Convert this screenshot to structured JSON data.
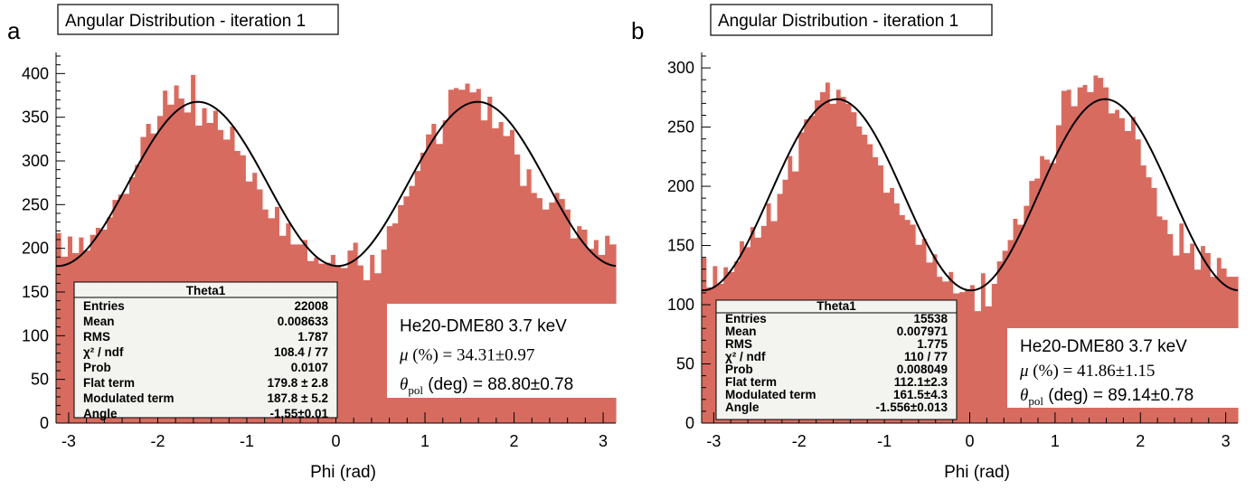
{
  "colors": {
    "histogram_fill": "#d86b5f",
    "histogram_line": "#ffffff",
    "fit_line": "#000000",
    "stats_bg": "#f3f3f0"
  },
  "chart_data": [
    {
      "type": "bar",
      "panel_label": "a",
      "title": "Angular Distribution - iteration 1",
      "xlabel": "Phi (rad)",
      "ylabel": "",
      "xlim": [
        -3.1416,
        3.1416
      ],
      "ylim": [
        0,
        420
      ],
      "x_ticks": [
        "-3",
        "-2",
        "-1",
        "0",
        "1",
        "2",
        "3"
      ],
      "y_ticks": [
        "0",
        "50",
        "100",
        "150",
        "200",
        "250",
        "300",
        "350",
        "400"
      ],
      "bin_count": 100,
      "values": [
        218,
        191,
        214,
        195,
        213,
        198,
        216,
        224,
        222,
        236,
        256,
        262,
        263,
        282,
        296,
        328,
        343,
        332,
        352,
        381,
        365,
        387,
        372,
        356,
        399,
        341,
        361,
        344,
        358,
        336,
        325,
        340,
        312,
        307,
        277,
        287,
        268,
        245,
        235,
        248,
        215,
        229,
        205,
        205,
        210,
        186,
        190,
        183,
        184,
        193,
        180,
        178,
        198,
        207,
        181,
        164,
        193,
        172,
        199,
        226,
        229,
        250,
        260,
        272,
        289,
        310,
        331,
        343,
        320,
        347,
        382,
        384,
        382,
        389,
        379,
        383,
        347,
        374,
        338,
        345,
        329,
        336,
        308,
        272,
        291,
        264,
        258,
        245,
        253,
        264,
        257,
        245,
        212,
        226,
        222,
        200,
        210,
        193,
        215,
        205
      ],
      "fit": {
        "flat_term": 179.8,
        "modulated_term": 187.8,
        "angle": -1.55
      },
      "stats": {
        "title": "Theta1",
        "rows": [
          {
            "label": "Entries",
            "value": "22008"
          },
          {
            "label": "Mean",
            "value": "0.008633"
          },
          {
            "label": "RMS",
            "value": "1.787"
          },
          {
            "label": "χ² / ndf",
            "value": "108.4 / 77"
          },
          {
            "label": "Prob",
            "value": "0.0107"
          },
          {
            "label": "Flat term",
            "value": "179.8 ± 2.8"
          },
          {
            "label": "Modulated term",
            "value": "187.8 ± 5.2"
          },
          {
            "label": "Angle",
            "value": "-1.55±0.01"
          }
        ]
      },
      "annotation": {
        "line1": "He20-DME80 3.7 keV",
        "mu_label": "μ (%) = ",
        "mu_value": "34.31±0.97",
        "theta_symbol": "θ",
        "theta_sub": "pol",
        "theta_label": " (deg) = ",
        "theta_value": "88.80±0.78"
      }
    },
    {
      "type": "bar",
      "panel_label": "b",
      "title": "Angular Distribution - iteration 1",
      "xlabel": "Phi (rad)",
      "ylabel": "",
      "xlim": [
        -3.1416,
        3.1416
      ],
      "ylim": [
        0,
        310
      ],
      "x_ticks": [
        "-3",
        "-2",
        "-1",
        "0",
        "1",
        "2",
        "3"
      ],
      "y_ticks": [
        "0",
        "50",
        "100",
        "150",
        "200",
        "250",
        "300"
      ],
      "bin_count": 100,
      "values": [
        140,
        115,
        133,
        118,
        132,
        128,
        137,
        154,
        149,
        166,
        157,
        167,
        186,
        171,
        194,
        206,
        226,
        213,
        246,
        257,
        260,
        273,
        280,
        288,
        270,
        282,
        276,
        270,
        263,
        251,
        244,
        236,
        225,
        218,
        195,
        199,
        186,
        176,
        172,
        168,
        151,
        156,
        136,
        143,
        124,
        120,
        128,
        110,
        111,
        113,
        117,
        95,
        127,
        99,
        118,
        137,
        146,
        155,
        173,
        168,
        184,
        205,
        207,
        226,
        223,
        220,
        252,
        281,
        282,
        268,
        284,
        286,
        280,
        294,
        292,
        284,
        262,
        265,
        258,
        247,
        259,
        240,
        218,
        208,
        199,
        175,
        172,
        160,
        142,
        169,
        144,
        152,
        130,
        150,
        144,
        124,
        140,
        131,
        124,
        124
      ],
      "fit": {
        "flat_term": 112.1,
        "modulated_term": 161.5,
        "angle": -1.556
      },
      "stats": {
        "title": "Theta1",
        "rows": [
          {
            "label": "Entries",
            "value": "15538"
          },
          {
            "label": "Mean",
            "value": "0.007971"
          },
          {
            "label": "RMS",
            "value": "1.775"
          },
          {
            "label": "χ² / ndf",
            "value": "110 / 77"
          },
          {
            "label": "Prob",
            "value": "0.008049"
          },
          {
            "label": "Flat term",
            "value": "112.1±2.3"
          },
          {
            "label": "Modulated term",
            "value": "161.5±4.3"
          },
          {
            "label": "Angle",
            "value": "-1.556±0.013"
          }
        ]
      },
      "annotation": {
        "line1": "He20-DME80 3.7 keV",
        "mu_label": "μ (%) = ",
        "mu_value": "41.86±1.15",
        "theta_symbol": "θ",
        "theta_sub": "pol",
        "theta_label": " (deg) = ",
        "theta_value": "89.14±0.78"
      }
    }
  ]
}
